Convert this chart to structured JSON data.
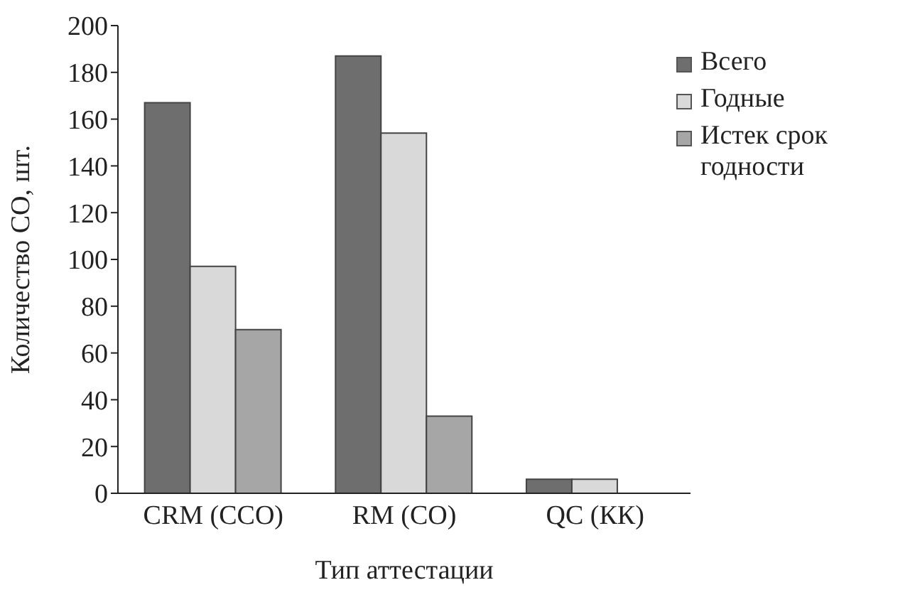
{
  "chart_data": {
    "type": "bar",
    "xlabel": "Тип аттестации",
    "ylabel": "Количество СО, шт.",
    "categories": [
      "CRM (ССО)",
      "RM (СО)",
      "QC (КК)"
    ],
    "series": [
      {
        "name": "Всего",
        "color": "#6e6e6e",
        "values": [
          167,
          187,
          6
        ]
      },
      {
        "name": "Годные",
        "color": "#d9d9d9",
        "values": [
          97,
          154,
          6
        ]
      },
      {
        "name": "Истек срок годности",
        "color": "#a6a6a6",
        "values": [
          70,
          33,
          0
        ]
      }
    ],
    "ylim": [
      0,
      200
    ],
    "yticks": [
      0,
      20,
      40,
      60,
      80,
      100,
      120,
      140,
      160,
      180,
      200
    ],
    "grid": false,
    "legend": "top right"
  }
}
